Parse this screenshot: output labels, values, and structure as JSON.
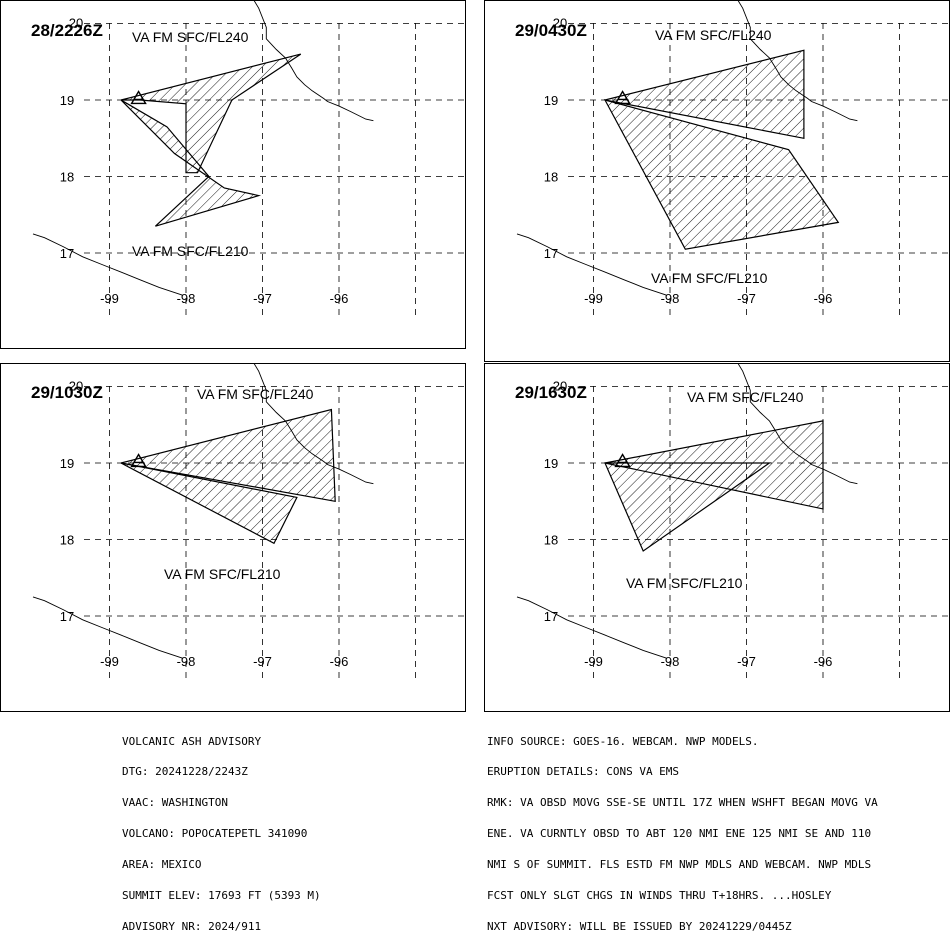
{
  "panels": [
    {
      "time": "28/2226Z",
      "upper_label": "VA FM SFC/FL240",
      "lower_label": "VA FM SFC/FL210",
      "upper_poly": [
        [
          -98.85,
          19.0
        ],
        [
          -96.5,
          19.6
        ],
        [
          -97.4,
          19.0
        ],
        [
          -97.85,
          18.05
        ],
        [
          -98.0,
          18.05
        ],
        [
          -98.0,
          18.95
        ],
        [
          -98.6,
          19.0
        ]
      ],
      "lower_poly": [
        [
          -98.85,
          19.0
        ],
        [
          -98.15,
          18.3
        ],
        [
          -97.5,
          17.85
        ],
        [
          -97.05,
          17.75
        ],
        [
          -98.4,
          17.35
        ],
        [
          -97.7,
          18.0
        ],
        [
          -98.25,
          18.65
        ]
      ]
    },
    {
      "time": "29/0430Z",
      "upper_label": "VA FM SFC/FL240",
      "lower_label": "VA FM SFC/FL210",
      "upper_poly": [
        [
          -98.85,
          19.0
        ],
        [
          -96.25,
          19.65
        ],
        [
          -96.25,
          18.5
        ]
      ],
      "lower_poly": [
        [
          -98.85,
          19.0
        ],
        [
          -96.45,
          18.35
        ],
        [
          -95.8,
          17.4
        ],
        [
          -97.8,
          17.05
        ]
      ]
    },
    {
      "time": "29/1030Z",
      "upper_label": "VA FM SFC/FL240",
      "lower_label": "VA FM SFC/FL210",
      "upper_poly": [
        [
          -98.85,
          19.0
        ],
        [
          -96.1,
          19.7
        ],
        [
          -96.05,
          18.5
        ]
      ],
      "lower_poly": [
        [
          -98.85,
          19.0
        ],
        [
          -96.55,
          18.55
        ],
        [
          -96.85,
          17.95
        ]
      ]
    },
    {
      "time": "29/1630Z",
      "upper_label": "VA FM SFC/FL240",
      "lower_label": "VA FM SFC/FL210",
      "upper_poly": [
        [
          -98.85,
          19.0
        ],
        [
          -96.0,
          19.55
        ],
        [
          -96.0,
          18.4
        ]
      ],
      "lower_poly": [
        [
          -98.85,
          19.0
        ],
        [
          -96.7,
          19.0
        ],
        [
          -98.35,
          17.85
        ]
      ]
    }
  ],
  "axis": {
    "x_ticks": [
      "-99",
      "-98",
      "-97",
      "-96"
    ],
    "y_ticks": [
      "20",
      "19",
      "18",
      "17"
    ]
  },
  "advisory_left": [
    "VOLCANIC ASH ADVISORY",
    "DTG: 20241228/2243Z",
    "VAAC: WASHINGTON",
    "VOLCANO: POPOCATEPETL 341090",
    "AREA: MEXICO",
    "SUMMIT ELEV: 17693 FT (5393 M)",
    "ADVISORY NR: 2024/911"
  ],
  "advisory_right": [
    "INFO SOURCE: GOES-16. WEBCAM. NWP MODELS.",
    "ERUPTION DETAILS: CONS VA EMS",
    "RMK: VA OBSD MOVG SSE-SE UNTIL 17Z WHEN WSHFT BEGAN MOVG VA",
    "ENE. VA CURNTLY OBSD TO ABT 120 NMI ENE 125 NMI SE AND 110",
    "NMI S OF SUMMIT. FLS ESTD FM NWP MDLS AND WEBCAM. NWP MDLS",
    "FCST ONLY SLGT CHGS IN WINDS THRU T+18HRS. ...HOSLEY",
    "NXT ADVISORY: WILL BE ISSUED BY 20241229/0445Z"
  ]
}
